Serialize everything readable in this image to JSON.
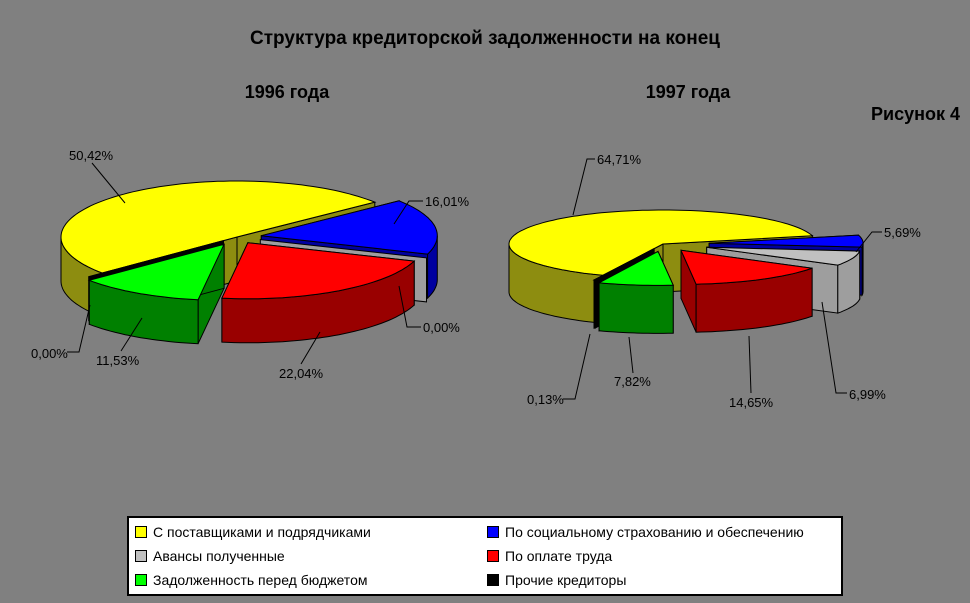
{
  "title": "Структура кредиторской задолженности на конец",
  "figure_caption": "Рисунок 4",
  "background_color": "#808080",
  "legend": {
    "position": "bottom",
    "items": [
      {
        "label": "С поставщиками и подрядчиками",
        "color": "#FFFF00"
      },
      {
        "label": "По социальному страхованию и обеспечению",
        "color": "#0000FF"
      },
      {
        "label": "Авансы полученные",
        "color": "#C0C0C0"
      },
      {
        "label": "По оплате труда",
        "color": "#FF0000"
      },
      {
        "label": "Задолженность перед бюджетом",
        "color": "#00FF00"
      },
      {
        "label": "Прочие кредиторы",
        "color": "#000000"
      }
    ]
  },
  "chart_data": [
    {
      "type": "pie",
      "title": "1996 года",
      "labels": [
        "С поставщиками и подрядчиками",
        "По социальному страхованию и обеспечению",
        "Авансы полученные",
        "По оплате труда",
        "Задолженность перед бюджетом",
        "Прочие кредиторы"
      ],
      "values": [
        50.42,
        16.01,
        0.0,
        22.04,
        11.53,
        0.0
      ],
      "display_labels": [
        "50,42%",
        "16,01%",
        "0,00%",
        "22,04%",
        "11,53%",
        "0,00%"
      ],
      "colors": [
        "#FFFF00",
        "#0000FF",
        "#C0C0C0",
        "#FF0000",
        "#00FF00",
        "#000000"
      ]
    },
    {
      "type": "pie",
      "title": "1997 года",
      "labels": [
        "С поставщиками и подрядчиками",
        "По социальному страхованию и обеспечению",
        "Авансы полученные",
        "По оплате труда",
        "Задолженность перед бюджетом",
        "Прочие кредиторы"
      ],
      "values": [
        64.71,
        5.69,
        6.99,
        14.65,
        7.82,
        0.13
      ],
      "display_labels": [
        "64,71%",
        "5,69%",
        "6,99%",
        "14,65%",
        "7,82%",
        "0,13%"
      ],
      "colors": [
        "#FFFF00",
        "#0000FF",
        "#C0C0C0",
        "#FF0000",
        "#00FF00",
        "#000000"
      ]
    }
  ]
}
